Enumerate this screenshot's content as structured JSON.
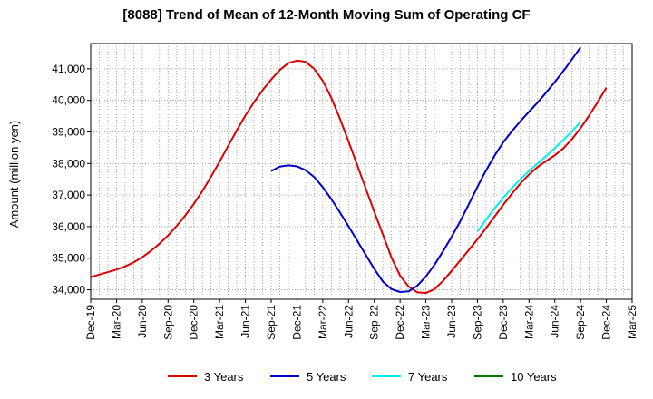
{
  "chart_data": {
    "type": "line",
    "title": "[8088]  Trend of Mean of 12-Month Moving Sum of Operating CF",
    "xlabel": "",
    "ylabel": "Amount (million yen)",
    "ylim": [
      33700,
      41800
    ],
    "yticks": [
      34000,
      35000,
      36000,
      37000,
      38000,
      39000,
      40000,
      41000
    ],
    "ytick_labels": [
      "34,000",
      "35,000",
      "36,000",
      "37,000",
      "38,000",
      "39,000",
      "40,000",
      "41,000"
    ],
    "x_start": "Dec-19",
    "x_months": 63,
    "xticks": [
      {
        "label": "Dec-19",
        "m": 0
      },
      {
        "label": "Mar-20",
        "m": 3
      },
      {
        "label": "Jun-20",
        "m": 6
      },
      {
        "label": "Sep-20",
        "m": 9
      },
      {
        "label": "Dec-20",
        "m": 12
      },
      {
        "label": "Mar-21",
        "m": 15
      },
      {
        "label": "Jun-21",
        "m": 18
      },
      {
        "label": "Sep-21",
        "m": 21
      },
      {
        "label": "Dec-21",
        "m": 24
      },
      {
        "label": "Mar-22",
        "m": 27
      },
      {
        "label": "Jun-22",
        "m": 30
      },
      {
        "label": "Sep-22",
        "m": 33
      },
      {
        "label": "Dec-22",
        "m": 36
      },
      {
        "label": "Mar-23",
        "m": 39
      },
      {
        "label": "Jun-23",
        "m": 42
      },
      {
        "label": "Sep-23",
        "m": 45
      },
      {
        "label": "Dec-23",
        "m": 48
      },
      {
        "label": "Mar-24",
        "m": 51
      },
      {
        "label": "Jun-24",
        "m": 54
      },
      {
        "label": "Sep-24",
        "m": 57
      },
      {
        "label": "Dec-24",
        "m": 60
      },
      {
        "label": "Mar-25",
        "m": 63
      }
    ],
    "grid": true,
    "legend_position": "bottom",
    "series": [
      {
        "name": "3 Years",
        "color": "#dd0000",
        "start_month": 0,
        "values": [
          34400,
          34480,
          34560,
          34640,
          34740,
          34870,
          35030,
          35230,
          35460,
          35720,
          36020,
          36350,
          36720,
          37130,
          37580,
          38060,
          38560,
          39050,
          39520,
          39940,
          40320,
          40660,
          40960,
          41180,
          41260,
          41220,
          41000,
          40620,
          40080,
          39420,
          38700,
          37960,
          37210,
          36470,
          35750,
          35020,
          34450,
          34100,
          33920,
          33900,
          34020,
          34280,
          34600,
          34930,
          35260,
          35600,
          35950,
          36320,
          36690,
          37040,
          37370,
          37650,
          37890,
          38080,
          38260,
          38480,
          38770,
          39120,
          39520,
          39950,
          40400
        ]
      },
      {
        "name": "5 Years",
        "color": "#0000cc",
        "start_month": 21,
        "values": [
          37760,
          37900,
          37940,
          37910,
          37790,
          37570,
          37250,
          36870,
          36450,
          36010,
          35560,
          35110,
          34660,
          34260,
          34020,
          33930,
          33950,
          34130,
          34420,
          34790,
          35220,
          35680,
          36170,
          36710,
          37260,
          37780,
          38250,
          38670,
          39020,
          39340,
          39640,
          39930,
          40250,
          40580,
          40930,
          41300,
          41680
        ]
      },
      {
        "name": "7 Years",
        "color": "#00eeee",
        "start_month": 45,
        "values": [
          35850,
          36220,
          36580,
          36910,
          37220,
          37500,
          37760,
          38000,
          38240,
          38490,
          38750,
          39020,
          39310
        ]
      },
      {
        "name": "10 Years",
        "color": "#007700",
        "start_month": 0,
        "values": []
      }
    ]
  }
}
